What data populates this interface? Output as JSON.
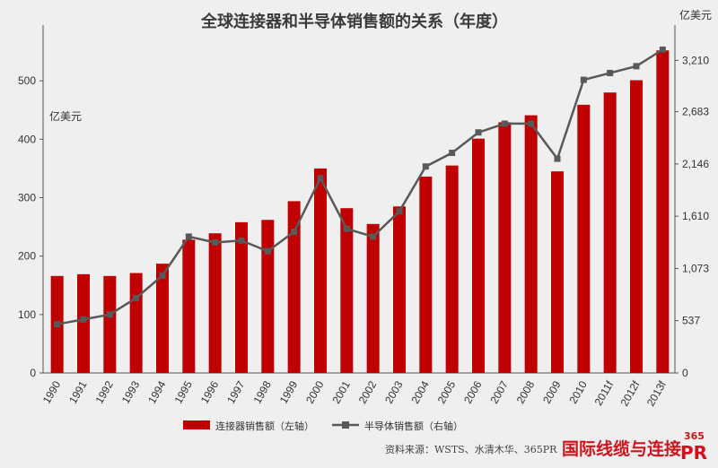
{
  "chart_data": {
    "type": "bar+line",
    "title": "全球连接器和半导体销售额的关系（年度）",
    "categories": [
      "1990",
      "1991",
      "1992",
      "1993",
      "1994",
      "1995",
      "1996",
      "1997",
      "1998",
      "1999",
      "2000",
      "2001",
      "2002",
      "2003",
      "2004",
      "2005",
      "2006",
      "2007",
      "2008",
      "2009",
      "2010",
      "2011f",
      "2012f",
      "2013f"
    ],
    "left_axis": {
      "unit": "亿美元",
      "ticks": [
        "0",
        "100",
        "200",
        "300",
        "400",
        "500"
      ],
      "ylim": [
        0,
        580
      ]
    },
    "right_axis": {
      "unit": "亿美元",
      "ticks": [
        "0",
        "537",
        "1,073",
        "1,610",
        "2,146",
        "2,683",
        "3,210"
      ],
      "ylim": [
        0,
        3480
      ]
    },
    "series": [
      {
        "name": "连接器销售额（左轴）",
        "type": "bar",
        "axis": "left",
        "color": "#c00000",
        "values": [
          166,
          169,
          166,
          171,
          187,
          228,
          239,
          258,
          262,
          294,
          350,
          282,
          255,
          285,
          336,
          355,
          401,
          429,
          441,
          345,
          459,
          480,
          501,
          552
        ]
      },
      {
        "name": "半导体销售额（右轴）",
        "type": "line",
        "axis": "right",
        "color": "#595959",
        "values": [
          500,
          550,
          600,
          770,
          1000,
          1400,
          1340,
          1360,
          1250,
          1450,
          2000,
          1480,
          1400,
          1660,
          2120,
          2260,
          2470,
          2560,
          2560,
          2200,
          3010,
          3080,
          3150,
          3320
        ]
      }
    ],
    "grid": false,
    "legend_position": "bottom"
  },
  "source": "资料来源：WSTS、水清木华、365PR",
  "logo": {
    "text": "国际线缆与连接",
    "num": "365",
    "pr": "PR"
  }
}
